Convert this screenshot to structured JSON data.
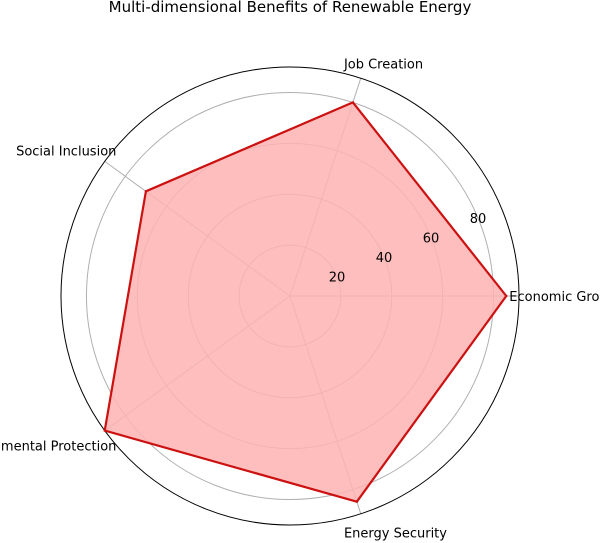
{
  "chart_data": {
    "type": "radar",
    "title": "Multi-dimensional Benefits of Renewable Energy",
    "categories": [
      "Economic Growth",
      "Job Creation",
      "Social Inclusion",
      "Environmental Protection",
      "Energy Security"
    ],
    "values": [
      85,
      80,
      70,
      90,
      85
    ],
    "rlim": [
      0,
      90
    ],
    "r_ticks": [
      20,
      40,
      60,
      80
    ],
    "grid": true,
    "colors": {
      "line": "#cc1111",
      "fill": "#ffb3b3",
      "grid": "#b0b0b0"
    }
  }
}
